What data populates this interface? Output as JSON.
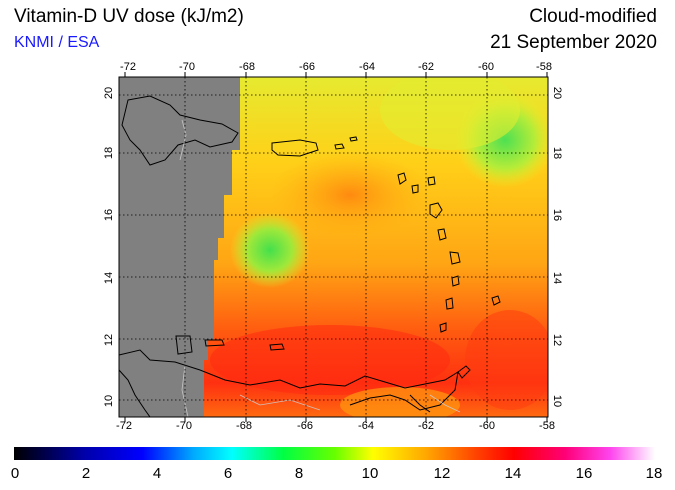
{
  "header": {
    "title": "Vitamin-D UV dose (kJ/m2)",
    "credit": "KNMI / ESA",
    "product": "Cloud-modified",
    "date": "21 September 2020"
  },
  "axes": {
    "lon_ticks": [
      "-72",
      "-70",
      "-68",
      "-66",
      "-64",
      "-62",
      "-60",
      "-58"
    ],
    "lat_ticks": [
      "10",
      "12",
      "14",
      "16",
      "18",
      "20"
    ]
  },
  "colorbar": {
    "labels": [
      "0",
      "2",
      "4",
      "6",
      "8",
      "10",
      "12",
      "14",
      "16",
      "18"
    ],
    "colors": [
      "#000000",
      "#0000aa",
      "#0000ff",
      "#00aaff",
      "#00ffff",
      "#00ff66",
      "#00ff00",
      "#aaff00",
      "#ffff00",
      "#ffaa00",
      "#ff5500",
      "#ff0000",
      "#ff0066",
      "#ff00cc",
      "#ff88ff",
      "#ffffff"
    ]
  },
  "legend_colors": {
    "no_data": "#808080",
    "coast": "#000000"
  }
}
